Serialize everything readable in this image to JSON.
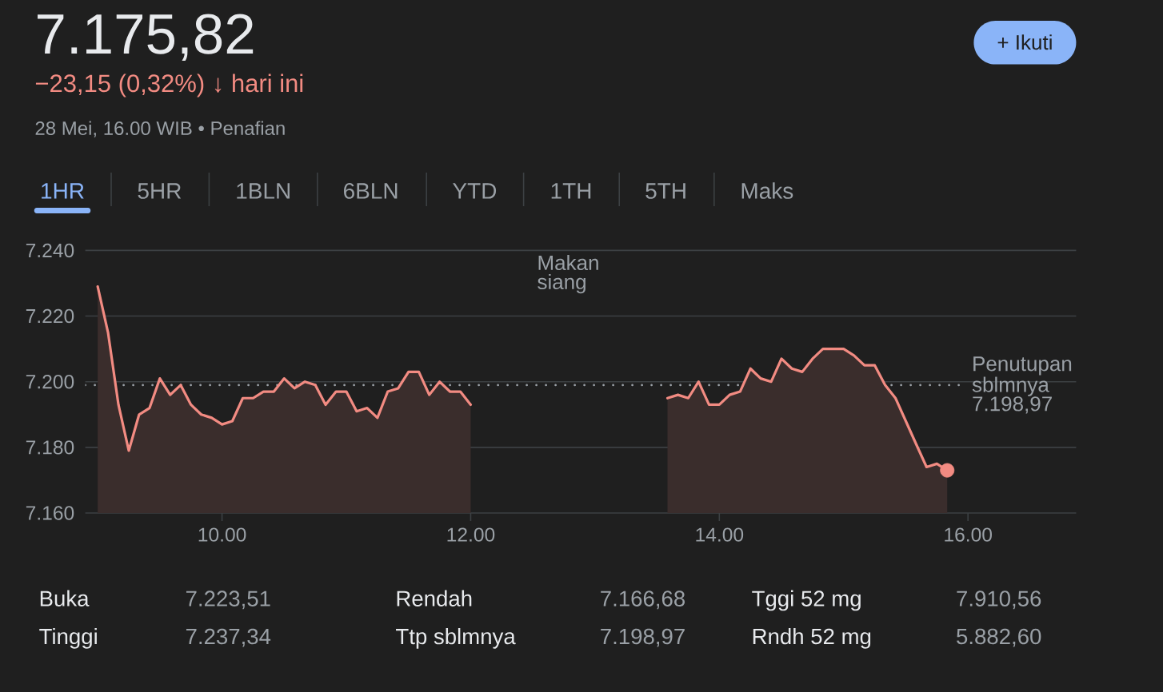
{
  "chart_data": {
    "type": "area",
    "title": "7.175,82",
    "subtitle": "−23,15 (0,32%) ↓ hari ini",
    "annotations": [
      "28 Mei, 16.00 WIB • Penafian",
      "+ Ikuti",
      "1HR",
      "5HR",
      "1BLN",
      "6BLN",
      "YTD",
      "1TH",
      "5TH",
      "Maks",
      "Makan siang",
      "Buka",
      "7.223,51",
      "Rendah",
      "7.166,68",
      "Tggi 52 mg",
      "7.910,56",
      "Tinggi",
      "7.237,34",
      "Ttp sblmnya",
      "7.198,97",
      "Rndh 52 mg",
      "5.882,60"
    ],
    "xlim": [
      8.9,
      16.87
    ],
    "xticks": [
      {
        "value": 10,
        "label": "10.00"
      },
      {
        "value": 12,
        "label": "12.00"
      },
      {
        "value": 14,
        "label": "14.00"
      },
      {
        "value": 16,
        "label": "16.00"
      }
    ],
    "ylim": [
      7160,
      7240
    ],
    "yticks": [
      {
        "value": 7160,
        "label": "7.160"
      },
      {
        "value": 7180,
        "label": "7.180"
      },
      {
        "value": 7200,
        "label": "7.200"
      },
      {
        "value": 7220,
        "label": "7.220"
      },
      {
        "value": 7240,
        "label": "7.240"
      }
    ],
    "grid": "y",
    "ref_lines": [
      {
        "axis": "y",
        "value": 7198.97,
        "label": "Penutupan sblmnya 7.198,97",
        "line_style": "dotted",
        "color": "#9aa0a6"
      }
    ],
    "series": [
      {
        "color": "#f28b82",
        "x": [
          9,
          9.083,
          9.167,
          9.25,
          9.333,
          9.417,
          9.5,
          9.583,
          9.667,
          9.75,
          9.833,
          9.917,
          10,
          10.083,
          10.167,
          10.25,
          10.333,
          10.417,
          10.5,
          10.583,
          10.667,
          10.75,
          10.833,
          10.917,
          11,
          11.083,
          11.167,
          11.25,
          11.333,
          11.417,
          11.5,
          11.583,
          11.667,
          11.75,
          11.833,
          11.917,
          12,
          12.79,
          13.583,
          13.667,
          13.75,
          13.833,
          13.917,
          14,
          14.083,
          14.167,
          14.25,
          14.333,
          14.417,
          14.5,
          14.583,
          14.667,
          14.75,
          14.833,
          14.917,
          15,
          15.083,
          15.167,
          15.25,
          15.333,
          15.417,
          15.5,
          15.583,
          15.667,
          15.75,
          15.833
        ],
        "values": [
          7229,
          7215,
          7193,
          7179,
          7190,
          7192,
          7201,
          7196,
          7199,
          7193,
          7190,
          7189,
          7187,
          7188,
          7195,
          7195,
          7197,
          7197,
          7201,
          7198,
          7200,
          7199,
          7193,
          7197,
          7197,
          7191,
          7192,
          7189,
          7197,
          7198,
          7203,
          7203,
          7196,
          7200,
          7197,
          7197,
          7193,
          null,
          7195,
          7196,
          7195,
          7200,
          7193,
          7193,
          7196,
          7197,
          7204,
          7201,
          7200,
          7207,
          7204,
          7203,
          7207,
          7210,
          7210,
          7210,
          7208,
          7205,
          7205,
          7199,
          7195,
          7188,
          7181,
          7174,
          7175,
          7173
        ]
      },
      {
        "type": "scatter",
        "color": "#f28b82",
        "marker": "circle",
        "x": [
          15.833
        ],
        "values": [
          7173
        ]
      }
    ]
  }
}
